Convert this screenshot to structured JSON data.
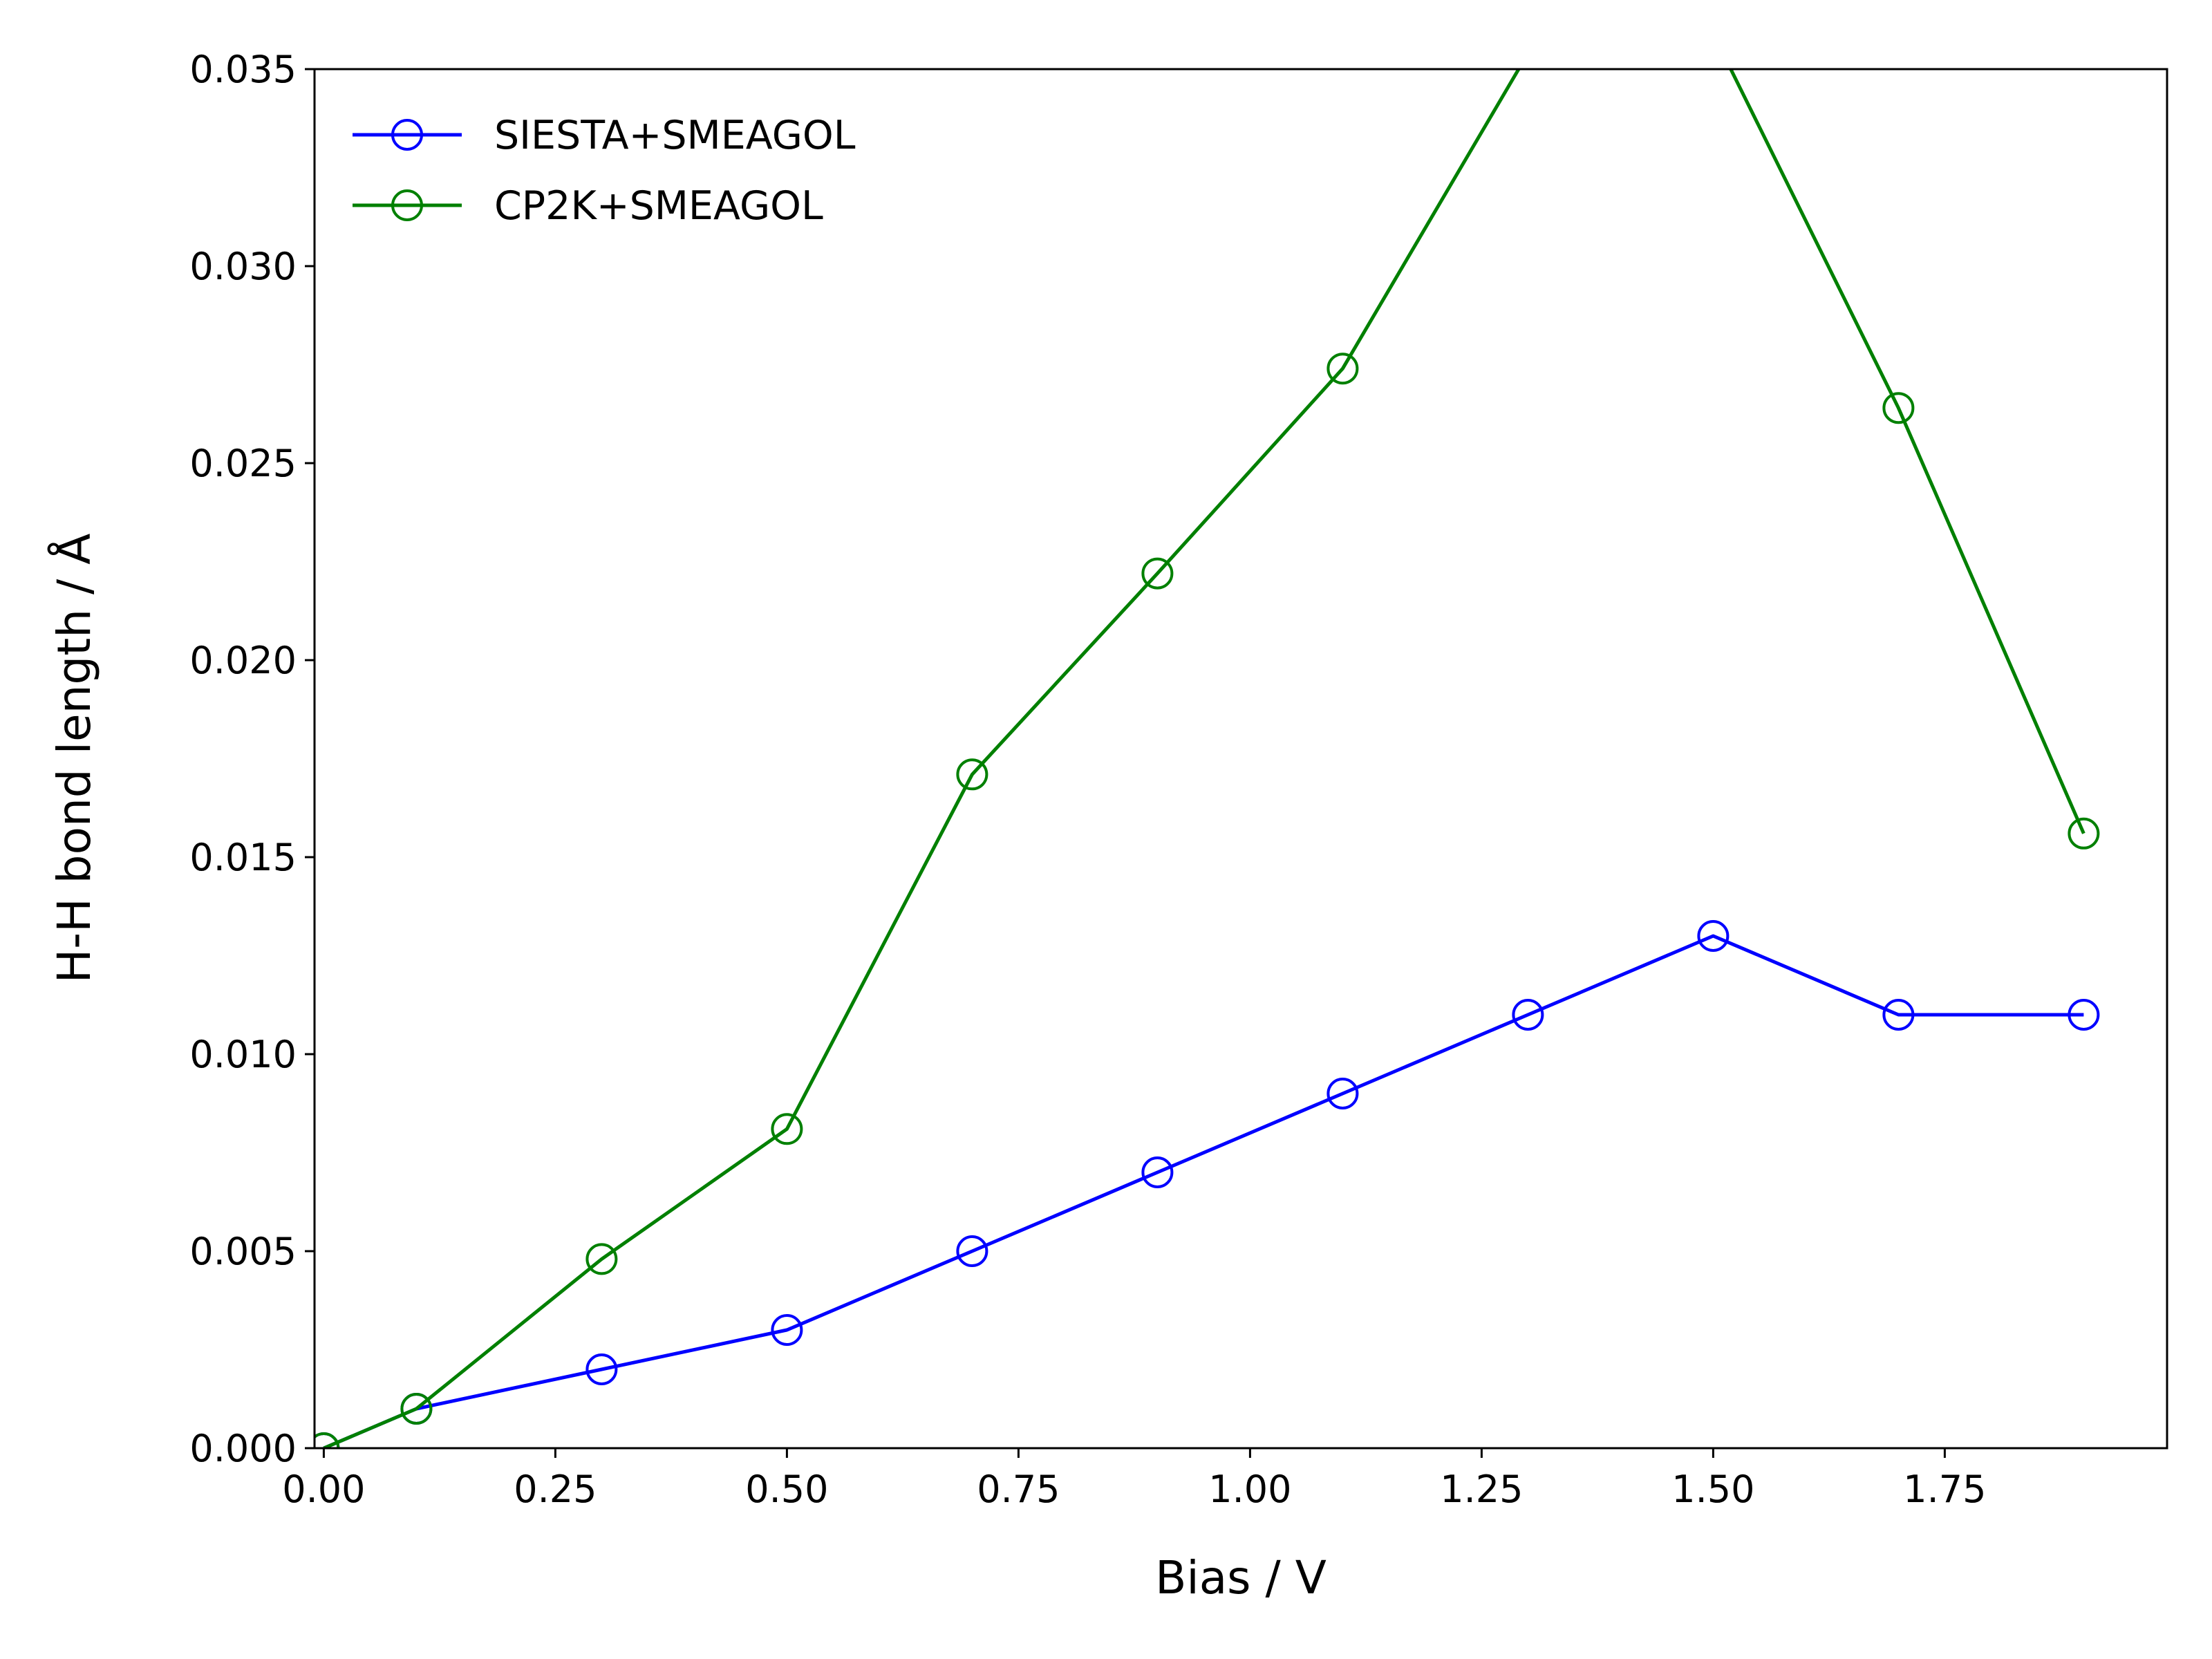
{
  "chart_data": {
    "type": "line",
    "title": "",
    "xlabel": "Bias / V",
    "ylabel": "H-H bond length / Å",
    "xlim": [
      -0.01,
      1.99
    ],
    "ylim": [
      0.0,
      0.035
    ],
    "xticks": [
      "0.00",
      "0.25",
      "0.50",
      "0.75",
      "1.00",
      "1.25",
      "1.50",
      "1.75"
    ],
    "yticks": [
      "0.000",
      "0.005",
      "0.010",
      "0.015",
      "0.020",
      "0.025",
      "0.030",
      "0.035"
    ],
    "grid": false,
    "legend_position": "upper-left",
    "series": [
      {
        "name": "SIESTA+SMEAGOL",
        "color": "#0000ff",
        "marker": "open-circle",
        "x": [
          0.0,
          0.1,
          0.3,
          0.5,
          0.7,
          0.9,
          1.1,
          1.3,
          1.5,
          1.7,
          1.9
        ],
        "y": [
          0.0,
          0.001,
          0.002,
          0.003,
          0.005,
          0.007,
          0.009,
          0.011,
          0.013,
          0.011,
          0.011
        ]
      },
      {
        "name": "CP2K+SMEAGOL",
        "color": "#008000",
        "marker": "open-circle",
        "x": [
          0.0,
          0.1,
          0.3,
          0.5,
          0.7,
          0.9,
          1.1,
          1.3,
          1.5,
          1.7,
          1.9
        ],
        "y": [
          0.0,
          0.001,
          0.0048,
          0.0081,
          0.0171,
          0.0222,
          0.0274,
          0.0354,
          0.0359,
          0.0264,
          0.0156
        ]
      }
    ]
  }
}
